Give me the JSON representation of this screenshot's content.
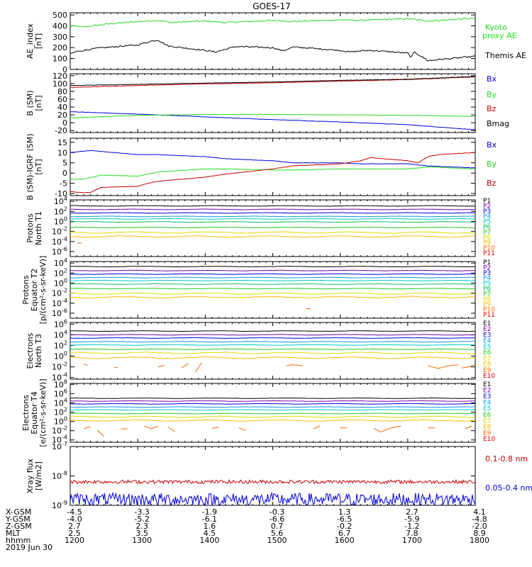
{
  "title": "GOES-17",
  "date_label": "2019 Jun 30",
  "ephemeris": {
    "rows": [
      {
        "label": "X-GSM",
        "values": [
          "-4.5",
          "-3.3",
          "-1.9",
          "-0.3",
          "1.3",
          "2.7",
          "4.1"
        ]
      },
      {
        "label": "Y-GSM",
        "values": [
          "-4.0",
          "-5.2",
          "-6.1",
          "-6.6",
          "-6.5",
          "-5.9",
          "-4.8"
        ]
      },
      {
        "label": "Z-GSM",
        "values": [
          "2.7",
          "2.3",
          "1.6",
          "0.7",
          "-0.2",
          "-1.2",
          "-2.0"
        ]
      },
      {
        "label": "MLT",
        "values": [
          "2.5",
          "3.5",
          "4.5",
          "5.6",
          "6.7",
          "7.8",
          "8.9"
        ]
      },
      {
        "label": "hhmm",
        "values": [
          "1200",
          "1300",
          "1400",
          "1500",
          "1600",
          "1700",
          "1800"
        ]
      }
    ]
  },
  "colors": {
    "black": "#000000",
    "green": "#22dd22",
    "blue": "#0000dd",
    "red": "#cc0000",
    "proton_channels": [
      "#000000",
      "#7700aa",
      "#0000dd",
      "#1199ee",
      "#00cccc",
      "#11bb66",
      "#22cc22",
      "#dddd00",
      "#ffbb00",
      "#ff6600",
      "#dd0000"
    ],
    "electron_channels": [
      "#000000",
      "#7700aa",
      "#0000dd",
      "#1199ee",
      "#00cccc",
      "#22cc22",
      "#dddd00",
      "#ffbb00",
      "#ff6600",
      "#dd0000"
    ]
  },
  "chart_data": [
    {
      "type": "line",
      "ylabel": [
        "AE_index",
        "[nT]"
      ],
      "yticks": [
        "500",
        "400",
        "300",
        "200",
        "100",
        "0"
      ],
      "ylim": [
        0,
        520
      ],
      "xlim": [
        1200,
        1800
      ],
      "legend": [
        "Kyoto proxy AE",
        "Themis AE"
      ],
      "series": [
        {
          "name": "Kyoto proxy AE",
          "color": "#22dd22",
          "x": [
            1200,
            1220,
            1240,
            1260,
            1300,
            1330,
            1350,
            1400,
            1430,
            1500,
            1530,
            1600,
            1630,
            1700,
            1730,
            1760,
            1800
          ],
          "y": [
            400,
            390,
            405,
            420,
            440,
            450,
            430,
            445,
            430,
            450,
            440,
            455,
            450,
            465,
            445,
            455,
            470
          ]
        },
        {
          "name": "Themis AE",
          "color": "#000000",
          "x": [
            1200,
            1210,
            1220,
            1240,
            1300,
            1320,
            1330,
            1345,
            1400,
            1415,
            1430,
            1445,
            1500,
            1515,
            1530,
            1545,
            1600,
            1615,
            1630,
            1645,
            1700,
            1705,
            1710,
            1720,
            1730,
            1745,
            1800
          ],
          "y": [
            145,
            165,
            175,
            195,
            225,
            260,
            270,
            215,
            175,
            160,
            185,
            210,
            200,
            170,
            205,
            200,
            175,
            160,
            170,
            175,
            150,
            110,
            160,
            120,
            80,
            90,
            120
          ]
        }
      ]
    },
    {
      "type": "line",
      "ylabel": [
        "B (SM)",
        "[nT]"
      ],
      "yticks": [
        "120",
        "100",
        "80",
        "60",
        "40",
        "20",
        "0",
        "-20"
      ],
      "ylim": [
        -25,
        125
      ],
      "xlim": [
        1200,
        1800
      ],
      "legend": [
        "Bx",
        "By",
        "Bz",
        "Bmag"
      ],
      "series": [
        {
          "name": "Bx",
          "color": "#0000dd",
          "x": [
            1200,
            1300,
            1400,
            1500,
            1600,
            1700,
            1800
          ],
          "y": [
            28,
            22,
            15,
            8,
            2,
            -5,
            -18
          ]
        },
        {
          "name": "By",
          "color": "#22dd22",
          "x": [
            1200,
            1300,
            1400,
            1500,
            1600,
            1700,
            1800
          ],
          "y": [
            12,
            19,
            21,
            21,
            20,
            19,
            16
          ]
        },
        {
          "name": "Bz",
          "color": "#cc0000",
          "x": [
            1200,
            1300,
            1400,
            1500,
            1600,
            1700,
            1800
          ],
          "y": [
            90,
            95,
            99,
            102,
            106,
            110,
            117
          ]
        },
        {
          "name": "Bmag",
          "color": "#000000",
          "x": [
            1200,
            1300,
            1400,
            1500,
            1600,
            1700,
            1800
          ],
          "y": [
            95,
            98,
            101,
            104,
            108,
            111,
            118
          ]
        }
      ]
    },
    {
      "type": "line",
      "ylabel": [
        "B (SM)-IGRF (SM)",
        "[nT]"
      ],
      "yticks": [
        "15",
        "10",
        "5",
        "0",
        "-5",
        "-10"
      ],
      "ylim": [
        -11,
        17
      ],
      "xlim": [
        1200,
        1800
      ],
      "legend": [
        "Bx",
        "By",
        "Bz"
      ],
      "series": [
        {
          "name": "Bx",
          "color": "#0000dd",
          "x": [
            1200,
            1230,
            1300,
            1330,
            1400,
            1430,
            1500,
            1530,
            1600,
            1630,
            1700,
            1730,
            1800
          ],
          "y": [
            10,
            11,
            9,
            9,
            8,
            7,
            6,
            5,
            5,
            4.5,
            4.5,
            3.5,
            2.5
          ]
        },
        {
          "name": "By",
          "color": "#22dd22",
          "x": [
            1200,
            1220,
            1245,
            1300,
            1330,
            1400,
            1430,
            1500,
            1530,
            1600,
            1630,
            1700,
            1730,
            1800
          ],
          "y": [
            -3,
            -3,
            -1,
            -1.5,
            0.5,
            2,
            2,
            1.5,
            1.5,
            2,
            2,
            2,
            3,
            2
          ]
        },
        {
          "name": "Bz",
          "color": "#cc0000",
          "x": [
            1200,
            1215,
            1230,
            1245,
            1300,
            1315,
            1330,
            1400,
            1430,
            1500,
            1530,
            1600,
            1630,
            1645,
            1700,
            1715,
            1730,
            1745,
            1800
          ],
          "y": [
            -9,
            -9.5,
            -9.5,
            -7,
            -6.5,
            -5,
            -4,
            -2,
            -0.5,
            2,
            3.5,
            4.5,
            6,
            7.5,
            6,
            5,
            8,
            9,
            10
          ]
        }
      ]
    },
    {
      "type": "line",
      "log_y": true,
      "ylabel": [
        "Protons",
        "North T1"
      ],
      "yticks_exp": [
        4,
        2,
        0,
        -2,
        -4,
        -6
      ],
      "ylim_exp": [
        -7,
        4.3
      ],
      "xlim": [
        1200,
        1800
      ],
      "legend": [
        "P1",
        "P2",
        "P3",
        "P4",
        "P5",
        "P6",
        "P7",
        "P8",
        "P9",
        "P10",
        "P11"
      ],
      "levels_exp": [
        3.1,
        2.4,
        1.7,
        1.0,
        0.5,
        -0.1,
        -1.2,
        -2.2,
        -3.0,
        -3.9,
        -4.6
      ],
      "fragments": [
        {
          "channel": "P10",
          "x": [
            1210,
            1217
          ],
          "y_exp": [
            -4.3,
            -4.3
          ]
        }
      ]
    },
    {
      "type": "line",
      "log_y": true,
      "ylabel": [
        "Protons",
        "Equator T2",
        "[p/(cm²-s-sr-keV)]"
      ],
      "yticks_exp": [
        4,
        2,
        0,
        -2,
        -4,
        -6
      ],
      "ylim_exp": [
        -7,
        4.3
      ],
      "xlim": [
        1200,
        1800
      ],
      "legend": [
        "P1",
        "P2",
        "P3",
        "P4",
        "P5",
        "P6",
        "P7",
        "P8",
        "P9",
        "P10",
        "P11"
      ],
      "levels_exp": [
        3.3,
        2.5,
        1.8,
        1.1,
        0.5,
        -0.2,
        -1.1,
        -2.1,
        -2.8,
        -3.8,
        -4.6
      ],
      "fragments": [
        {
          "channel": "P10",
          "x": [
            1550,
            1556
          ],
          "y_exp": [
            -5.1,
            -5.1
          ]
        }
      ]
    },
    {
      "type": "line",
      "log_y": true,
      "ylabel": [
        "Electrons",
        "North T3"
      ],
      "yticks_exp": [
        6,
        4,
        2,
        0,
        -2,
        -4
      ],
      "ylim_exp": [
        -4.3,
        6.3
      ],
      "xlim": [
        1200,
        1800
      ],
      "legend": [
        "E1",
        "E2",
        "E3",
        "E4",
        "E5",
        "E6",
        "E7",
        "E8",
        "E9",
        "E10"
      ],
      "levels_exp": [
        4.7,
        4.0,
        3.4,
        2.7,
        2.1,
        1.3,
        0.6,
        -0.3,
        -1.0,
        -1.9
      ],
      "fragments": [
        {
          "channel": "E9",
          "x": [
            1220,
            1226
          ],
          "y_exp": [
            -1.5,
            -1.7
          ]
        },
        {
          "channel": "E9",
          "x": [
            1265,
            1270
          ],
          "y_exp": [
            -2.1,
            -2.1
          ]
        },
        {
          "channel": "E9",
          "x": [
            1330,
            1340
          ],
          "y_exp": [
            -2.0,
            -1.7
          ]
        },
        {
          "channel": "E9",
          "x": [
            1365,
            1375
          ],
          "y_exp": [
            -2.2,
            -1.4
          ]
        },
        {
          "channel": "E9",
          "x": [
            1385,
            1395
          ],
          "y_exp": [
            -3.0,
            -1.2
          ]
        },
        {
          "channel": "E9",
          "x": [
            1520,
            1530,
            1545
          ],
          "y_exp": [
            -1.8,
            -1.6,
            -1.8
          ]
        },
        {
          "channel": "E9",
          "x": [
            1730,
            1745,
            1760,
            1775
          ],
          "y_exp": [
            -1.8,
            -2.3,
            -1.8,
            -1.6
          ]
        },
        {
          "channel": "E9",
          "x": [
            1780,
            1790,
            1800
          ],
          "y_exp": [
            -2.2,
            -2.0,
            -1.6
          ]
        }
      ]
    },
    {
      "type": "line",
      "log_y": true,
      "ylabel": [
        "Electrons",
        "Equator T4",
        "[e/(cm²-s-sr-keV)]"
      ],
      "yticks_exp": [
        8,
        6,
        4,
        2,
        0,
        -2,
        -4
      ],
      "ylim_exp": [
        -4.5,
        8.2
      ],
      "xlim": [
        1200,
        1800
      ],
      "legend": [
        "E1",
        "E2",
        "E3",
        "E4",
        "E5",
        "E6",
        "E7",
        "E8",
        "E9",
        "E10"
      ],
      "levels_exp": [
        5.0,
        4.4,
        3.8,
        3.1,
        2.5,
        1.7,
        1.0,
        0.2,
        -0.6,
        -1.6
      ],
      "fragments": [
        {
          "channel": "E9",
          "x": [
            1220,
            1230
          ],
          "y_exp": [
            -1.6,
            -1.1
          ]
        },
        {
          "channel": "E9",
          "x": [
            1240,
            1250
          ],
          "y_exp": [
            -1.9,
            -3.2
          ]
        },
        {
          "channel": "E9",
          "x": [
            1275,
            1285
          ],
          "y_exp": [
            -1.6,
            -1.6
          ]
        },
        {
          "channel": "E9",
          "x": [
            1310,
            1320,
            1330
          ],
          "y_exp": [
            -1.0,
            -1.6,
            -1.0
          ]
        },
        {
          "channel": "E9",
          "x": [
            1345,
            1355
          ],
          "y_exp": [
            -1.2,
            -2.2
          ]
        },
        {
          "channel": "E9",
          "x": [
            1410,
            1420
          ],
          "y_exp": [
            -1.5,
            -1.2
          ]
        },
        {
          "channel": "E9",
          "x": [
            1450,
            1460
          ],
          "y_exp": [
            -1.4,
            -2.0
          ]
        },
        {
          "channel": "E9",
          "x": [
            1560,
            1570
          ],
          "y_exp": [
            -1.6,
            -1.0
          ]
        },
        {
          "channel": "E9",
          "x": [
            1600,
            1610
          ],
          "y_exp": [
            -1.4,
            -1.4
          ]
        },
        {
          "channel": "E9",
          "x": [
            1650,
            1660,
            1675,
            1690
          ],
          "y_exp": [
            -1.5,
            -2.3,
            -1.4,
            -1.0
          ]
        },
        {
          "channel": "E9",
          "x": [
            1730,
            1740
          ],
          "y_exp": [
            -1.4,
            -1.4
          ]
        },
        {
          "channel": "E9",
          "x": [
            1785,
            1795
          ],
          "y_exp": [
            -1.6,
            -1.0
          ]
        }
      ]
    },
    {
      "type": "line",
      "log_y": true,
      "ylabel": [
        "Xray flux",
        "[W/m2]"
      ],
      "yticks_exp": [
        -7,
        -8,
        -9
      ],
      "ylim_exp": [
        -9,
        -7
      ],
      "xlim": [
        1200,
        1800
      ],
      "legend": [
        "0.1-0.8 nm",
        "0.05-0.4 nm"
      ],
      "series": [
        {
          "name": "0.1-0.8 nm",
          "color": "#cc0000",
          "base_exp": -8.2,
          "noise_exp": 0.06
        },
        {
          "name": "0.05-0.4 nm",
          "color": "#0000dd",
          "base_exp": -8.8,
          "noise_exp": 0.22
        }
      ]
    }
  ]
}
